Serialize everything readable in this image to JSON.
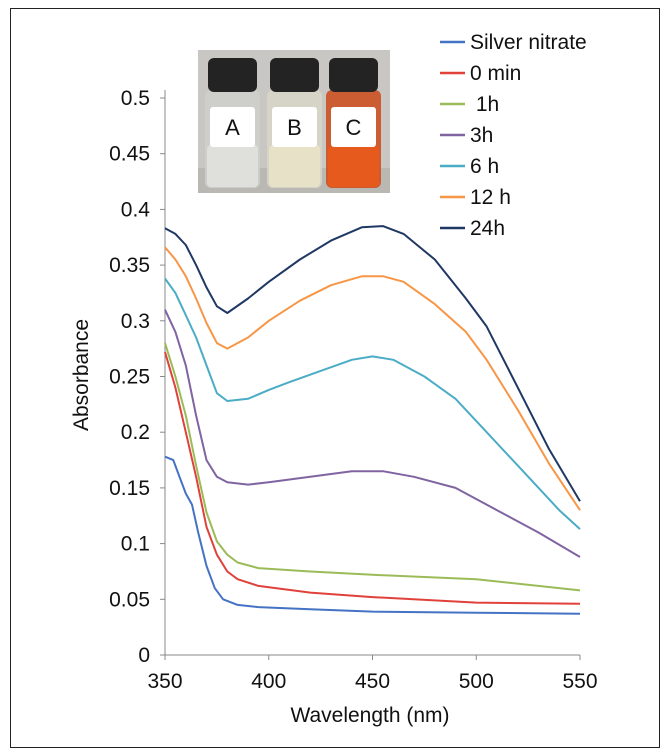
{
  "chart_data": {
    "type": "line",
    "title": "",
    "xlabel": "Wavelength (nm)",
    "ylabel": "Absorbance",
    "xlim": [
      350,
      550
    ],
    "ylim": [
      0,
      0.5
    ],
    "xticks": [
      "350",
      "400",
      "450",
      "500",
      "550"
    ],
    "yticks": [
      "0",
      "0.05",
      "0.1",
      "0.15",
      "0.2",
      "0.25",
      "0.3",
      "0.35",
      "0.4",
      "0.45",
      "0.5"
    ],
    "grid": false,
    "legend": "top-right",
    "series": [
      {
        "name": "Silver nitrate",
        "color": "#4472C4",
        "points": [
          [
            350,
            0.178
          ],
          [
            354,
            0.175
          ],
          [
            357,
            0.16
          ],
          [
            360,
            0.145
          ],
          [
            363,
            0.135
          ],
          [
            366,
            0.11
          ],
          [
            370,
            0.08
          ],
          [
            374,
            0.06
          ],
          [
            378,
            0.05
          ],
          [
            385,
            0.045
          ],
          [
            395,
            0.043
          ],
          [
            420,
            0.041
          ],
          [
            450,
            0.039
          ],
          [
            500,
            0.038
          ],
          [
            550,
            0.037
          ]
        ]
      },
      {
        "name": "0 min",
        "color": "#E0413B",
        "points": [
          [
            350,
            0.272
          ],
          [
            355,
            0.24
          ],
          [
            360,
            0.2
          ],
          [
            365,
            0.16
          ],
          [
            370,
            0.115
          ],
          [
            375,
            0.09
          ],
          [
            380,
            0.075
          ],
          [
            385,
            0.068
          ],
          [
            395,
            0.062
          ],
          [
            420,
            0.056
          ],
          [
            450,
            0.052
          ],
          [
            500,
            0.047
          ],
          [
            550,
            0.046
          ]
        ]
      },
      {
        "name": " 1h",
        "color": "#9BBB59",
        "points": [
          [
            350,
            0.28
          ],
          [
            355,
            0.25
          ],
          [
            360,
            0.215
          ],
          [
            365,
            0.17
          ],
          [
            370,
            0.128
          ],
          [
            375,
            0.102
          ],
          [
            380,
            0.09
          ],
          [
            385,
            0.083
          ],
          [
            395,
            0.078
          ],
          [
            420,
            0.075
          ],
          [
            450,
            0.072
          ],
          [
            500,
            0.068
          ],
          [
            550,
            0.058
          ]
        ]
      },
      {
        "name": "3h",
        "color": "#8064A2",
        "points": [
          [
            350,
            0.31
          ],
          [
            355,
            0.29
          ],
          [
            360,
            0.26
          ],
          [
            365,
            0.215
          ],
          [
            370,
            0.175
          ],
          [
            375,
            0.16
          ],
          [
            380,
            0.155
          ],
          [
            390,
            0.153
          ],
          [
            400,
            0.155
          ],
          [
            420,
            0.16
          ],
          [
            440,
            0.165
          ],
          [
            455,
            0.165
          ],
          [
            470,
            0.16
          ],
          [
            490,
            0.15
          ],
          [
            510,
            0.13
          ],
          [
            530,
            0.11
          ],
          [
            550,
            0.088
          ]
        ]
      },
      {
        "name": "6 h",
        "color": "#4BACC6",
        "points": [
          [
            350,
            0.338
          ],
          [
            355,
            0.325
          ],
          [
            360,
            0.305
          ],
          [
            365,
            0.285
          ],
          [
            370,
            0.26
          ],
          [
            375,
            0.235
          ],
          [
            380,
            0.228
          ],
          [
            390,
            0.23
          ],
          [
            400,
            0.238
          ],
          [
            410,
            0.245
          ],
          [
            425,
            0.255
          ],
          [
            440,
            0.265
          ],
          [
            450,
            0.268
          ],
          [
            460,
            0.265
          ],
          [
            475,
            0.25
          ],
          [
            490,
            0.23
          ],
          [
            500,
            0.21
          ],
          [
            520,
            0.17
          ],
          [
            540,
            0.13
          ],
          [
            550,
            0.113
          ]
        ]
      },
      {
        "name": "12 h",
        "color": "#F79646",
        "points": [
          [
            350,
            0.366
          ],
          [
            355,
            0.355
          ],
          [
            360,
            0.34
          ],
          [
            365,
            0.32
          ],
          [
            370,
            0.298
          ],
          [
            375,
            0.28
          ],
          [
            380,
            0.275
          ],
          [
            390,
            0.285
          ],
          [
            400,
            0.3
          ],
          [
            415,
            0.318
          ],
          [
            430,
            0.332
          ],
          [
            445,
            0.34
          ],
          [
            455,
            0.34
          ],
          [
            465,
            0.335
          ],
          [
            480,
            0.315
          ],
          [
            495,
            0.29
          ],
          [
            505,
            0.265
          ],
          [
            520,
            0.22
          ],
          [
            535,
            0.172
          ],
          [
            550,
            0.13
          ]
        ]
      },
      {
        "name": "24h",
        "color": "#1F3864",
        "points": [
          [
            350,
            0.383
          ],
          [
            355,
            0.378
          ],
          [
            360,
            0.368
          ],
          [
            365,
            0.35
          ],
          [
            370,
            0.33
          ],
          [
            375,
            0.313
          ],
          [
            380,
            0.307
          ],
          [
            390,
            0.32
          ],
          [
            400,
            0.335
          ],
          [
            415,
            0.355
          ],
          [
            430,
            0.372
          ],
          [
            445,
            0.384
          ],
          [
            455,
            0.385
          ],
          [
            465,
            0.378
          ],
          [
            480,
            0.355
          ],
          [
            495,
            0.32
          ],
          [
            505,
            0.295
          ],
          [
            520,
            0.24
          ],
          [
            535,
            0.185
          ],
          [
            550,
            0.138
          ]
        ]
      }
    ]
  },
  "inset": {
    "vials": [
      {
        "label": "A",
        "liquid": "#dfe0dc",
        "bottle": "#cfd0cc"
      },
      {
        "label": "B",
        "liquid": "#e7e1c8",
        "bottle": "#d8d5c8"
      },
      {
        "label": "C",
        "liquid": "#e65a1e",
        "bottle": "#cc4a1a"
      }
    ]
  }
}
